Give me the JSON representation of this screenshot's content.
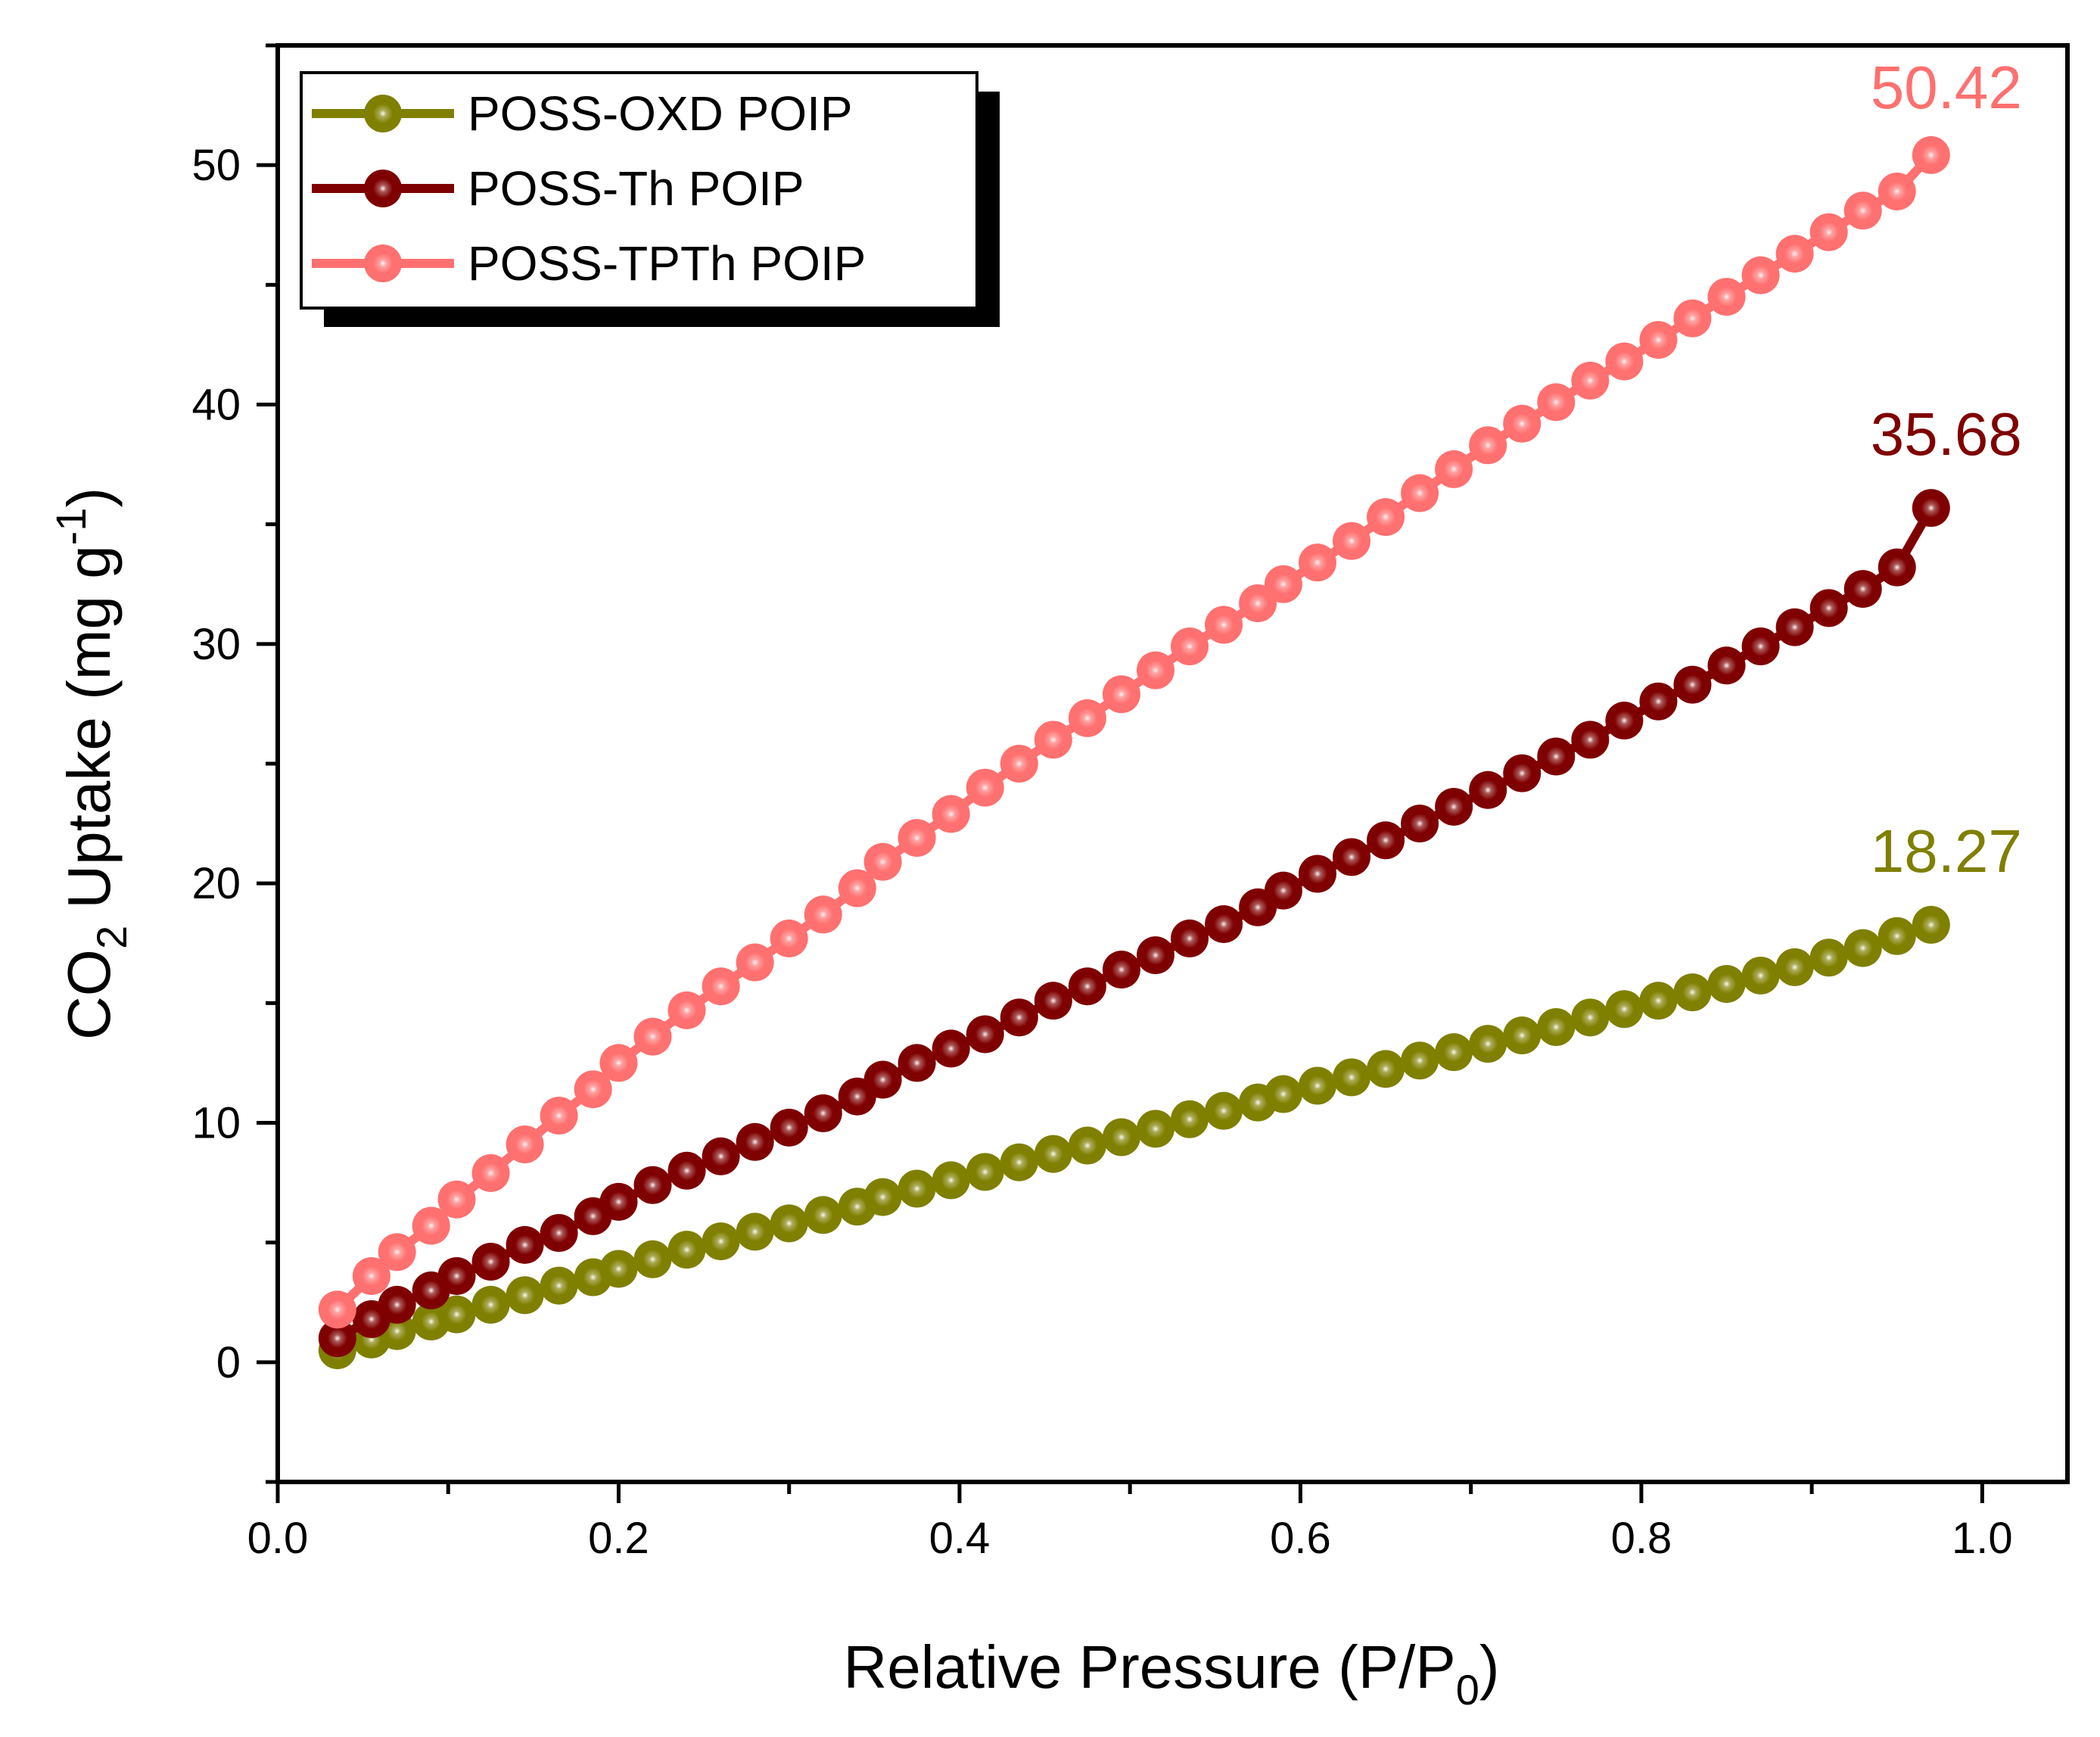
{
  "chart_data": {
    "type": "line",
    "xlabel": "Relative Pressure (P/P",
    "xlabel_sub": "0",
    "xlabel_end": ")",
    "ylabel": "CO",
    "ylabel_sub": "2",
    "ylabel_mid": " Uptake (mg g",
    "ylabel_sup": "-1",
    "ylabel_end": ")",
    "xlim": [
      0.0,
      1.05
    ],
    "ylim": [
      -5,
      55
    ],
    "xticks": [
      "0.0",
      "0.2",
      "0.4",
      "0.6",
      "0.8",
      "1.0"
    ],
    "xtick_values": [
      0.0,
      0.2,
      0.4,
      0.6,
      0.8,
      1.0
    ],
    "yticks": [
      "0",
      "10",
      "20",
      "30",
      "40",
      "50"
    ],
    "ytick_values": [
      0,
      10,
      20,
      30,
      40,
      50
    ],
    "legend_position": "top-left",
    "series": [
      {
        "name": "POSS-OXD POIP",
        "color": "#7f7f00",
        "end_label": "18.27",
        "x": [
          0.035,
          0.055,
          0.07,
          0.09,
          0.105,
          0.125,
          0.145,
          0.165,
          0.185,
          0.2,
          0.22,
          0.24,
          0.26,
          0.28,
          0.3,
          0.32,
          0.34,
          0.355,
          0.375,
          0.395,
          0.415,
          0.435,
          0.455,
          0.475,
          0.495,
          0.515,
          0.535,
          0.555,
          0.575,
          0.59,
          0.61,
          0.63,
          0.65,
          0.67,
          0.69,
          0.71,
          0.73,
          0.75,
          0.77,
          0.79,
          0.81,
          0.83,
          0.85,
          0.87,
          0.89,
          0.91,
          0.93,
          0.95,
          0.97
        ],
        "y": [
          0.5,
          0.95,
          1.3,
          1.7,
          2.0,
          2.4,
          2.8,
          3.2,
          3.55,
          3.9,
          4.3,
          4.7,
          5.05,
          5.45,
          5.8,
          6.15,
          6.5,
          6.9,
          7.25,
          7.6,
          7.95,
          8.35,
          8.7,
          9.05,
          9.4,
          9.75,
          10.15,
          10.5,
          10.85,
          11.2,
          11.55,
          11.9,
          12.25,
          12.6,
          12.95,
          13.3,
          13.65,
          14.0,
          14.4,
          14.75,
          15.1,
          15.45,
          15.8,
          16.15,
          16.5,
          16.9,
          17.3,
          17.8,
          18.27
        ]
      },
      {
        "name": "POSS-Th POIP",
        "color": "#7f0000",
        "end_label": "35.68",
        "x": [
          0.035,
          0.055,
          0.07,
          0.09,
          0.105,
          0.125,
          0.145,
          0.165,
          0.185,
          0.2,
          0.22,
          0.24,
          0.26,
          0.28,
          0.3,
          0.32,
          0.34,
          0.355,
          0.375,
          0.395,
          0.415,
          0.435,
          0.455,
          0.475,
          0.495,
          0.515,
          0.535,
          0.555,
          0.575,
          0.59,
          0.61,
          0.63,
          0.65,
          0.67,
          0.69,
          0.71,
          0.73,
          0.75,
          0.77,
          0.79,
          0.81,
          0.83,
          0.85,
          0.87,
          0.89,
          0.91,
          0.93,
          0.95,
          0.97
        ],
        "y": [
          1.0,
          1.8,
          2.4,
          3.0,
          3.6,
          4.2,
          4.9,
          5.4,
          6.1,
          6.7,
          7.4,
          8.0,
          8.6,
          9.2,
          9.8,
          10.4,
          11.1,
          11.8,
          12.5,
          13.1,
          13.7,
          14.4,
          15.1,
          15.7,
          16.4,
          17.0,
          17.7,
          18.3,
          19.0,
          19.7,
          20.4,
          21.1,
          21.8,
          22.5,
          23.2,
          23.9,
          24.6,
          25.3,
          26.0,
          26.8,
          27.6,
          28.3,
          29.1,
          29.9,
          30.7,
          31.5,
          32.3,
          33.2,
          35.68
        ]
      },
      {
        "name": "POSS-TPTh POIP",
        "color": "#ff7070",
        "end_label": "50.42",
        "x": [
          0.035,
          0.055,
          0.07,
          0.09,
          0.105,
          0.125,
          0.145,
          0.165,
          0.185,
          0.2,
          0.22,
          0.24,
          0.26,
          0.28,
          0.3,
          0.32,
          0.34,
          0.355,
          0.375,
          0.395,
          0.415,
          0.435,
          0.455,
          0.475,
          0.495,
          0.515,
          0.535,
          0.555,
          0.575,
          0.59,
          0.61,
          0.63,
          0.65,
          0.67,
          0.69,
          0.71,
          0.73,
          0.75,
          0.77,
          0.79,
          0.81,
          0.83,
          0.85,
          0.87,
          0.89,
          0.91,
          0.93,
          0.95,
          0.97
        ],
        "y": [
          2.2,
          3.6,
          4.6,
          5.7,
          6.8,
          7.9,
          9.1,
          10.3,
          11.4,
          12.5,
          13.6,
          14.7,
          15.7,
          16.7,
          17.7,
          18.7,
          19.8,
          20.9,
          21.9,
          22.9,
          24.0,
          25.0,
          26.0,
          26.9,
          27.9,
          28.9,
          29.9,
          30.8,
          31.7,
          32.5,
          33.4,
          34.3,
          35.3,
          36.3,
          37.3,
          38.3,
          39.2,
          40.1,
          41.0,
          41.8,
          42.7,
          43.6,
          44.5,
          45.4,
          46.3,
          47.2,
          48.1,
          48.9,
          50.42
        ]
      }
    ]
  }
}
